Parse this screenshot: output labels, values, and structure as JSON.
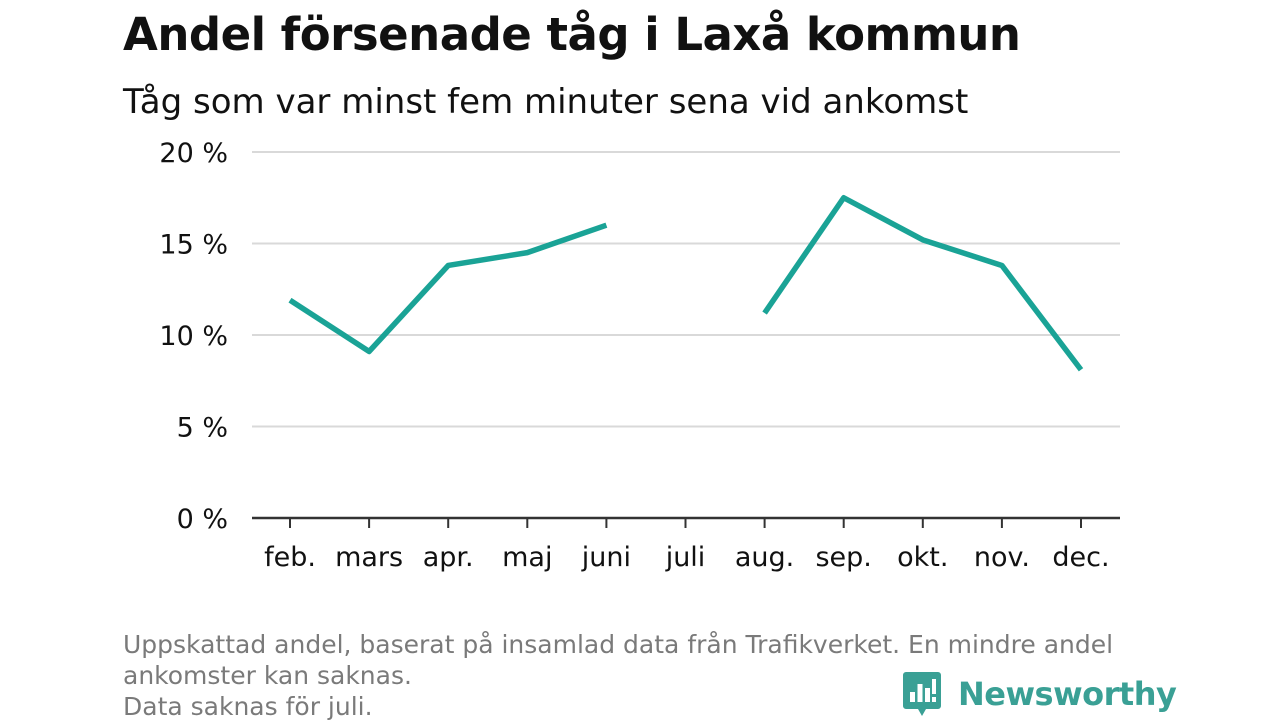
{
  "title": "Andel försenade tåg i Laxå kommun",
  "subtitle": "Tåg som var minst fem minuter sena vid ankomst",
  "footnote": {
    "line1": "Uppskattad andel, baserat på insamlad data från Trafikverket. En mindre andel",
    "line2": "ankomster kan saknas.",
    "line3": "Data saknas för juli."
  },
  "brand": {
    "name": "Newsworthy",
    "icon": "bar-chart-speech-bubble-icon",
    "color": "#3aa095"
  },
  "colors": {
    "line": "#1aa396",
    "grid": "#d9d9d9",
    "axis": "#333333",
    "text": "#111111",
    "footnote": "#7a7a7a"
  },
  "chart_data": {
    "type": "line",
    "categories": [
      "feb.",
      "mars",
      "apr.",
      "maj",
      "juni",
      "juli",
      "aug.",
      "sep.",
      "okt.",
      "nov.",
      "dec."
    ],
    "series": [
      {
        "values": [
          11.9,
          9.1,
          13.8,
          14.5,
          16.0,
          null,
          11.2,
          17.5,
          15.2,
          13.8,
          8.1
        ]
      }
    ],
    "yticks": [
      0,
      5,
      10,
      15,
      20
    ],
    "ytick_labels": [
      "0 %",
      "5 %",
      "10 %",
      "15 %",
      "20 %"
    ],
    "ylim": [
      0,
      20
    ],
    "grid": true,
    "legend": "none"
  }
}
